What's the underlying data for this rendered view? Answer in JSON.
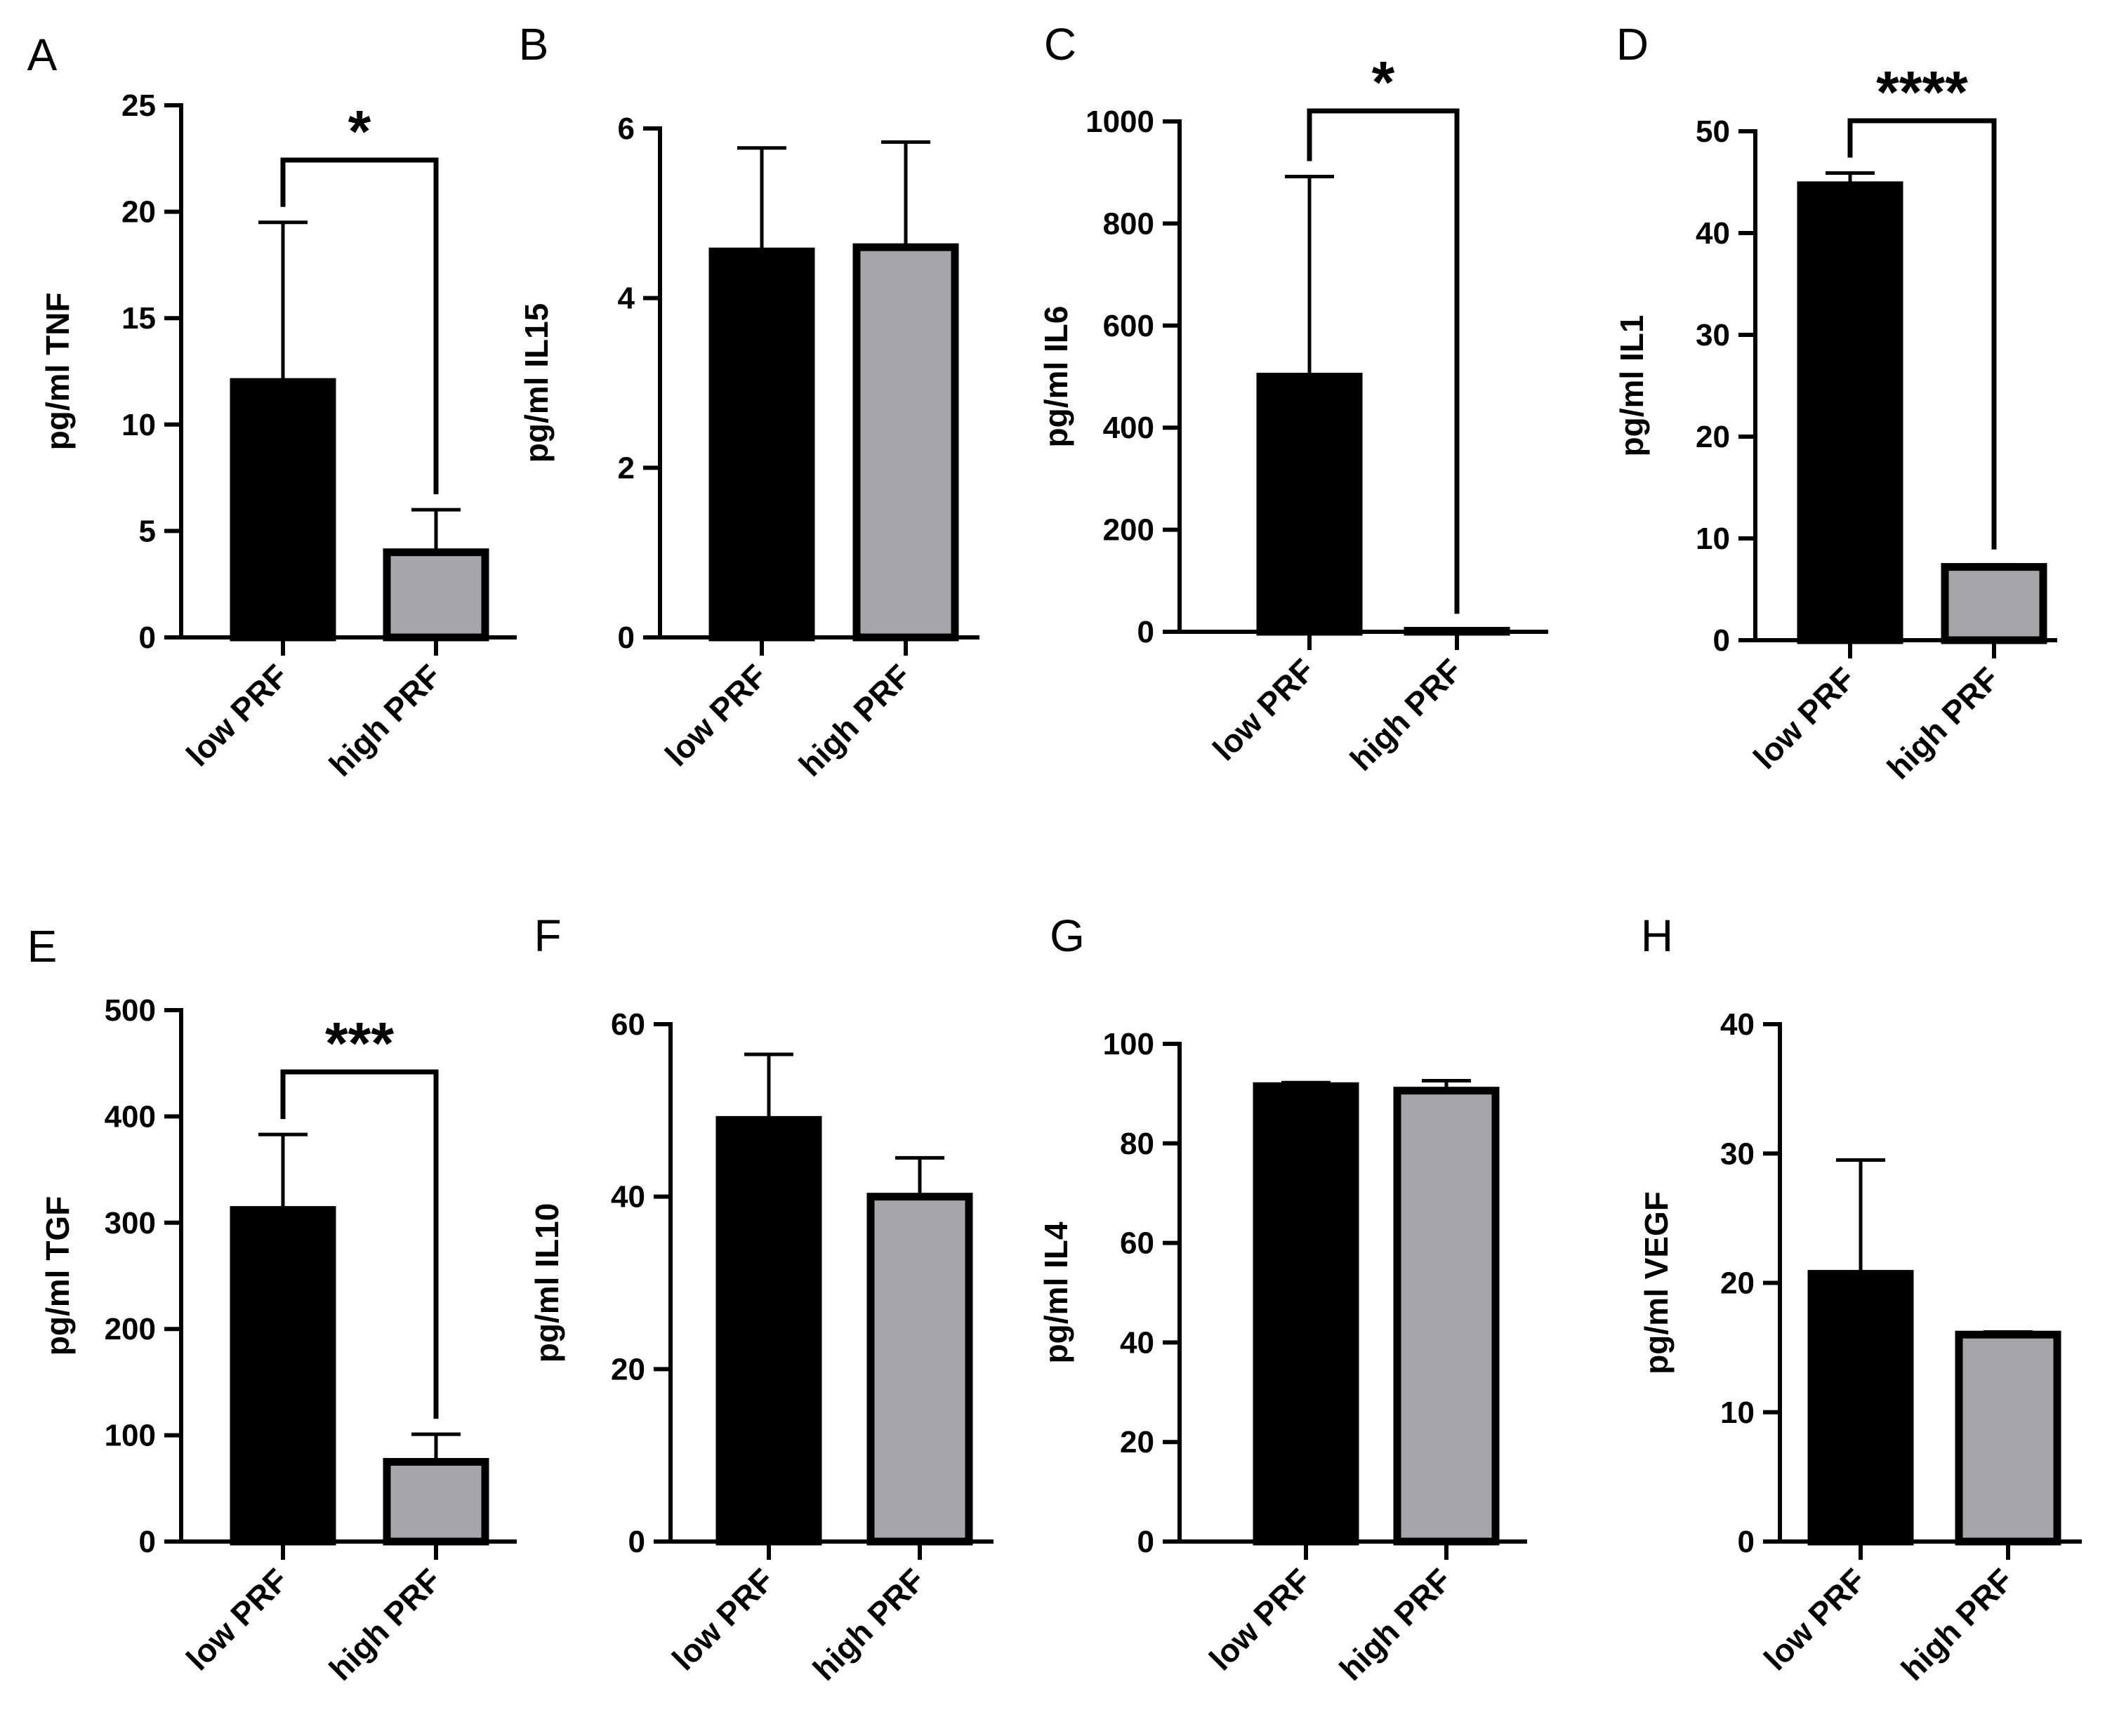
{
  "figure": {
    "colors": {
      "low": "#000000",
      "high": "#a6a6aa",
      "stroke": "#000000"
    }
  },
  "chart_data": [
    {
      "panel": "A",
      "type": "bar",
      "categories": [
        "low PRF",
        "high PRF"
      ],
      "values": [
        12.0,
        4.0
      ],
      "errors": [
        19.5,
        6.0
      ],
      "ylabel": "pg/ml TNF",
      "ylim": [
        0,
        25
      ],
      "yticks": [
        0,
        5,
        10,
        15,
        20,
        25
      ],
      "ytick_labels": [
        "0",
        "5",
        "10",
        "15",
        "20",
        "25"
      ],
      "significance": "*"
    },
    {
      "panel": "B",
      "type": "bar",
      "categories": [
        "low PRF",
        "high PRF"
      ],
      "values": [
        4.55,
        4.6
      ],
      "errors": [
        5.77,
        5.84
      ],
      "ylabel": "pg/ml IL15",
      "ylim": [
        0,
        6
      ],
      "yticks": [
        0,
        2,
        4,
        6
      ],
      "ytick_labels": [
        "0",
        "2",
        "4",
        "6"
      ],
      "significance": null
    },
    {
      "panel": "C",
      "type": "bar",
      "categories": [
        "low PRF",
        "high PRF"
      ],
      "values": [
        500,
        2
      ],
      "errors": [
        892,
        5
      ],
      "ylabel": "pg/ml IL6",
      "ylim": [
        0,
        1000
      ],
      "yticks": [
        0,
        200,
        400,
        600,
        800,
        1000
      ],
      "ytick_labels": [
        "0",
        "200",
        "400",
        "600",
        "800",
        "1000"
      ],
      "significance": "*"
    },
    {
      "panel": "D",
      "type": "bar",
      "categories": [
        "low PRF",
        "high PRF"
      ],
      "values": [
        44.7,
        7.2
      ],
      "errors": [
        45.9,
        7.4
      ],
      "ylabel": "pg/ml IL1",
      "ylim": [
        0,
        50
      ],
      "yticks": [
        0,
        10,
        20,
        30,
        40,
        50
      ],
      "ytick_labels": [
        "0",
        "10",
        "20",
        "30",
        "40",
        "50"
      ],
      "significance": "****"
    },
    {
      "panel": "E",
      "type": "bar",
      "categories": [
        "low PRF",
        "high PRF"
      ],
      "values": [
        312,
        75
      ],
      "errors": [
        383,
        101
      ],
      "ylabel": "pg/ml TGF",
      "ylim": [
        0,
        500
      ],
      "yticks": [
        0,
        100,
        200,
        300,
        400,
        500
      ],
      "ytick_labels": [
        "0",
        "100",
        "200",
        "300",
        "400",
        "500"
      ],
      "significance": "***"
    },
    {
      "panel": "F",
      "type": "bar",
      "categories": [
        "low PRF",
        "high PRF"
      ],
      "values": [
        48.9,
        40.0
      ],
      "errors": [
        56.5,
        44.5
      ],
      "ylabel": "pg/ml IL10",
      "ylim": [
        0,
        60
      ],
      "yticks": [
        0,
        20,
        40,
        60
      ],
      "ytick_labels": [
        "0",
        "20",
        "40",
        "60"
      ],
      "significance": null
    },
    {
      "panel": "G",
      "type": "bar",
      "categories": [
        "low PRF",
        "high PRF"
      ],
      "values": [
        91.5,
        90.6
      ],
      "errors": [
        92.2,
        92.6
      ],
      "ylabel": "pg/ml IL4",
      "ylim": [
        0,
        100
      ],
      "yticks": [
        0,
        20,
        40,
        60,
        80,
        100
      ],
      "ytick_labels": [
        "0",
        "20",
        "40",
        "60",
        "80",
        "100"
      ],
      "significance": null
    },
    {
      "panel": "H",
      "type": "bar",
      "categories": [
        "low PRF",
        "high PRF"
      ],
      "values": [
        20.7,
        16.0
      ],
      "errors": [
        29.5,
        16.2
      ],
      "ylabel": "pg/ml VEGF",
      "ylim": [
        0,
        40
      ],
      "yticks": [
        0,
        10,
        20,
        30,
        40
      ],
      "ytick_labels": [
        "0",
        "10",
        "20",
        "30",
        "40"
      ],
      "significance": null
    }
  ]
}
